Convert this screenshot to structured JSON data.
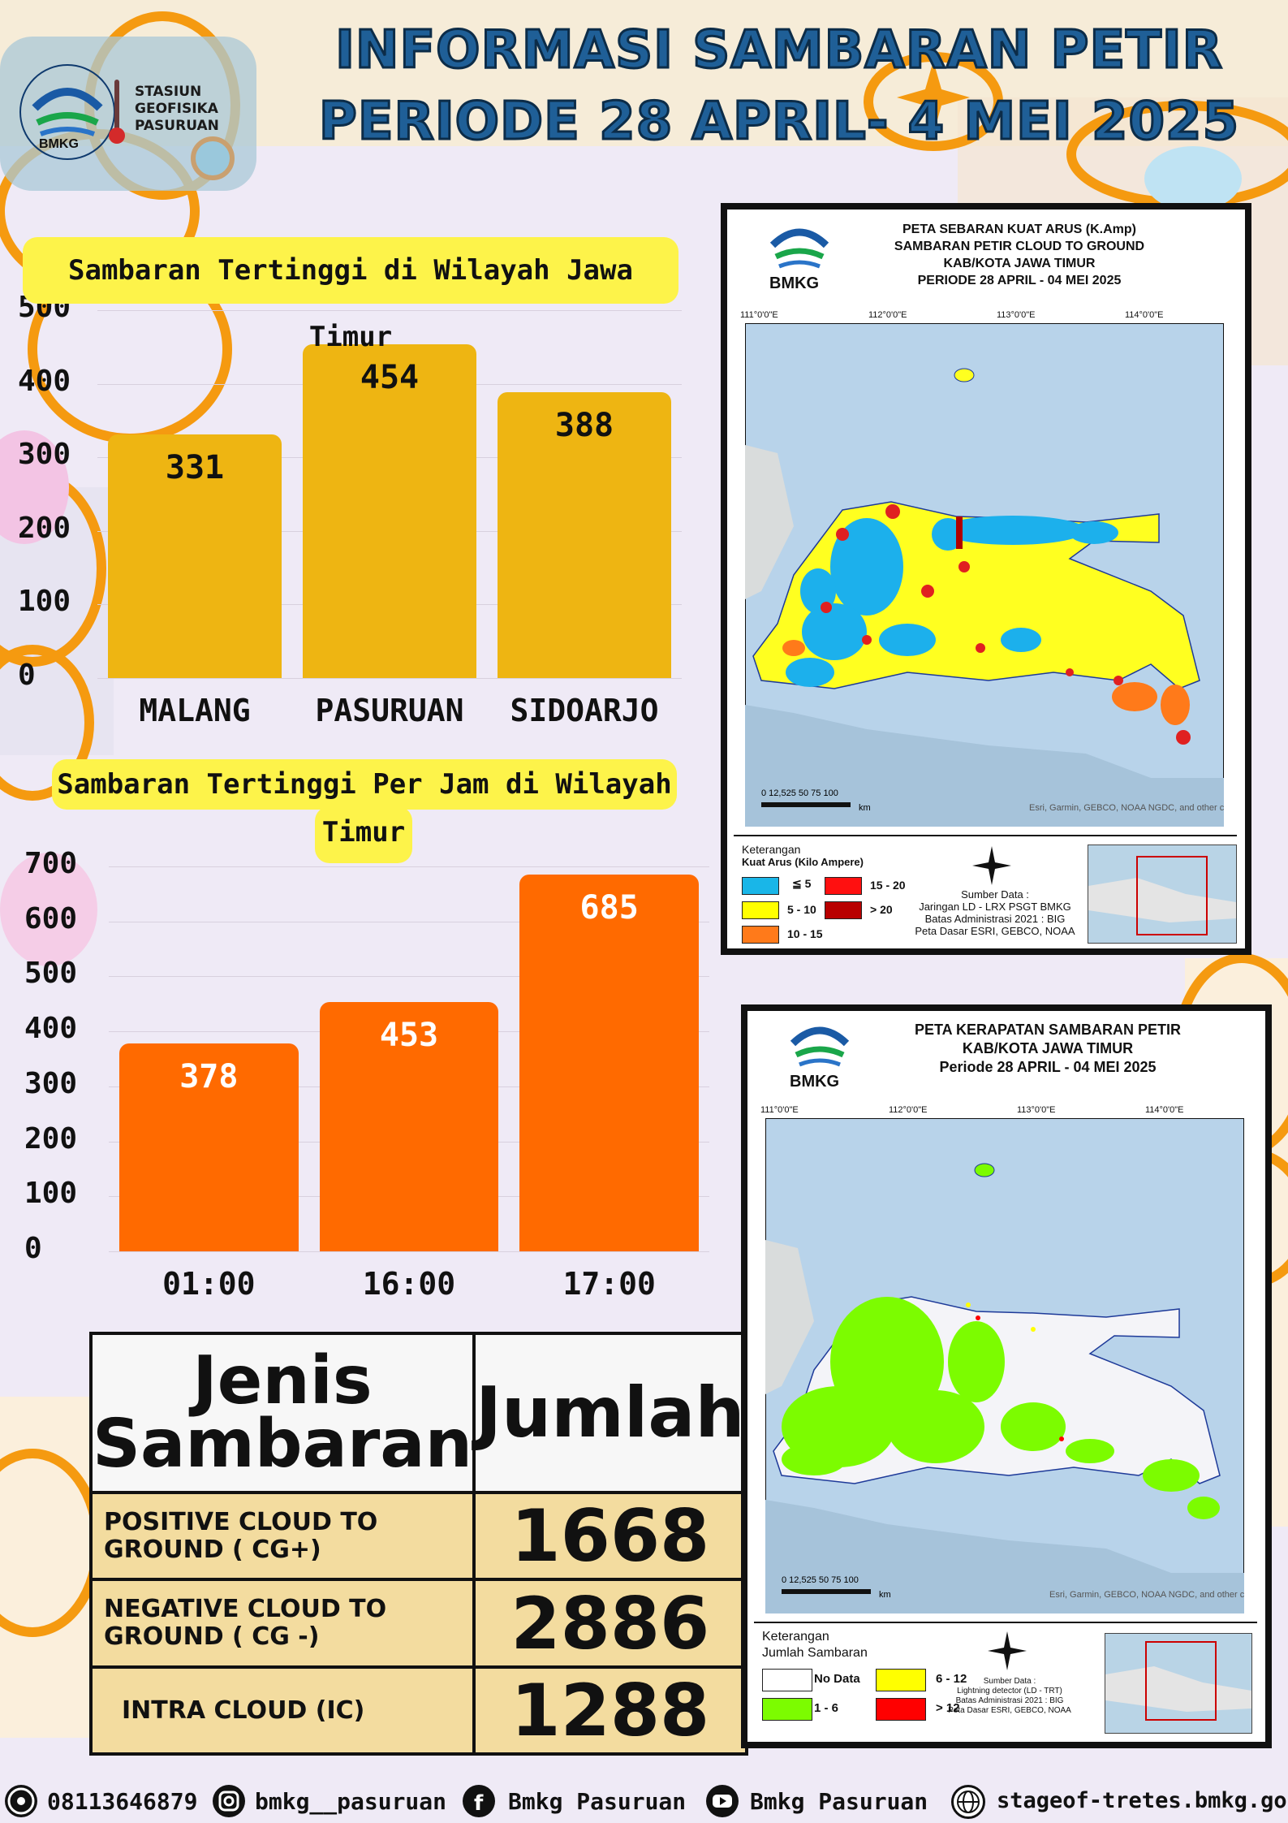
{
  "header": {
    "title_line1": "INFORMASI SAMBARAN PETIR",
    "title_line2": "PERIODE 28  APRIL- 4 MEI 2025",
    "logo_ring_text": "STASIUN GEOFISIKA PASURUAN",
    "logo_bmkg": "BMKG",
    "station_line1": "STASIUN",
    "station_line2": "GEOFISIKA",
    "station_line3": "PASURUAN"
  },
  "chart_data": [
    {
      "type": "bar",
      "title": "Sambaran Tertinggi di Wilayah Jawa Timur",
      "categories": [
        "MALANG",
        "PASURUAN",
        "SIDOARJO"
      ],
      "values": [
        331,
        454,
        388
      ],
      "value_labels": [
        "331",
        "454",
        "388"
      ],
      "yticks": [
        "0",
        "100",
        "200",
        "300",
        "400",
        "500"
      ],
      "ylim": [
        0,
        500
      ],
      "color": "#eeb512",
      "label_color": "#111111"
    },
    {
      "type": "bar",
      "title": "Sambaran Tertinggi Per Jam di Wilayah Jawa",
      "title_line2": "Timur",
      "categories": [
        "01:00",
        "16:00",
        "17:00"
      ],
      "values": [
        378,
        453,
        685
      ],
      "value_labels": [
        "378",
        "453",
        "685"
      ],
      "yticks": [
        "0",
        "100",
        "200",
        "300",
        "400",
        "500",
        "600",
        "700"
      ],
      "ylim": [
        0,
        700
      ],
      "color": "#ff6a00",
      "label_color": "#ffffff"
    }
  ],
  "table": {
    "header_col1_line1": "Jenis",
    "header_col1_line2": "Sambaran",
    "header_col2": "Jumlah",
    "rows": [
      {
        "label_line1": "POSITIVE CLOUD TO",
        "label_line2": "GROUND ( CG+)",
        "value": "1668"
      },
      {
        "label_line1": "NEGATIVE CLOUD TO",
        "label_line2": "GROUND ( CG -)",
        "value": "2886"
      },
      {
        "label_line1": "INTRA CLOUD (IC)",
        "label_line2": "",
        "value": "1288"
      }
    ]
  },
  "map1": {
    "title_line1": "PETA SEBARAN KUAT ARUS (K.Amp)",
    "title_line2": "SAMBARAN PETIR CLOUD TO GROUND",
    "title_line3": "KAB/KOTA JAWA TIMUR",
    "title_line4": "PERIODE 28 APRIL - 04 MEI 2025",
    "bmkg": "BMKG",
    "lon_labels": [
      "111°0'0\"E",
      "112°0'0\"E",
      "113°0'0\"E",
      "114°0'0\"E"
    ],
    "scale_label": "0 12,525    50    75   100",
    "scale_unit": "km",
    "credit": "Esri, Garmin, GEBCO, NOAA NGDC, and other contributors",
    "legend_title": "Keterangan",
    "legend_subtitle": "Kuat Arus (Kilo Ampere)",
    "legend": [
      {
        "label": "≦ 5",
        "color": "#19b6e8"
      },
      {
        "label": "15 - 20",
        "color": "#ff1010"
      },
      {
        "label": "5 - 10",
        "color": "#ffff00"
      },
      {
        "label": "> 20",
        "color": "#b80000"
      },
      {
        "label": "10 - 15",
        "color": "#ff7a1a"
      }
    ],
    "source_title": "Sumber Data :",
    "source_line1": "Jaringan LD - LRX PSGT BMKG",
    "source_line2": "Batas Administrasi 2021  : BIG",
    "source_line3": "Peta Dasar ESRI, GEBCO, NOAA"
  },
  "map2": {
    "title_line1": "PETA KERAPATAN SAMBARAN PETIR",
    "title_line2": "KAB/KOTA JAWA TIMUR",
    "title_line3": "Periode  28 APRIL - 04 MEI  2025",
    "bmkg": "BMKG",
    "lon_labels": [
      "111°0'0\"E",
      "112°0'0\"E",
      "113°0'0\"E",
      "114°0'0\"E"
    ],
    "scale_label": "0 12,525    50    75   100",
    "scale_unit": "km",
    "credit": "Esri, Garmin, GEBCO, NOAA NGDC, and other contributors",
    "legend_title": "Keterangan",
    "legend_subtitle": "Jumlah Sambaran",
    "legend": [
      {
        "label": "No Data",
        "color": "#ffffff"
      },
      {
        "label": "6 - 12",
        "color": "#ffff00"
      },
      {
        "label": "1 - 6",
        "color": "#7cfc00"
      },
      {
        "label": "> 12",
        "color": "#ff0000"
      }
    ],
    "source_title": "Sumber Data :",
    "source_line1": "Lightning detector (LD - TRT)",
    "source_line2": "Batas Administrasi 2021  : BIG",
    "source_line3": "Peta Dasar ESRI, GEBCO, NOAA"
  },
  "footer": {
    "phone": "08113646879",
    "instagram": "bmkg__pasuruan",
    "facebook": "Bmkg Pasuruan",
    "youtube": "Bmkg Pasuruan",
    "website": "stageof-tretes.bmkg.go.id"
  },
  "icons": [
    "whatsapp-icon",
    "instagram-icon",
    "facebook-icon",
    "youtube-icon",
    "globe-icon",
    "compass-icon",
    "bmkg-logo-icon"
  ]
}
